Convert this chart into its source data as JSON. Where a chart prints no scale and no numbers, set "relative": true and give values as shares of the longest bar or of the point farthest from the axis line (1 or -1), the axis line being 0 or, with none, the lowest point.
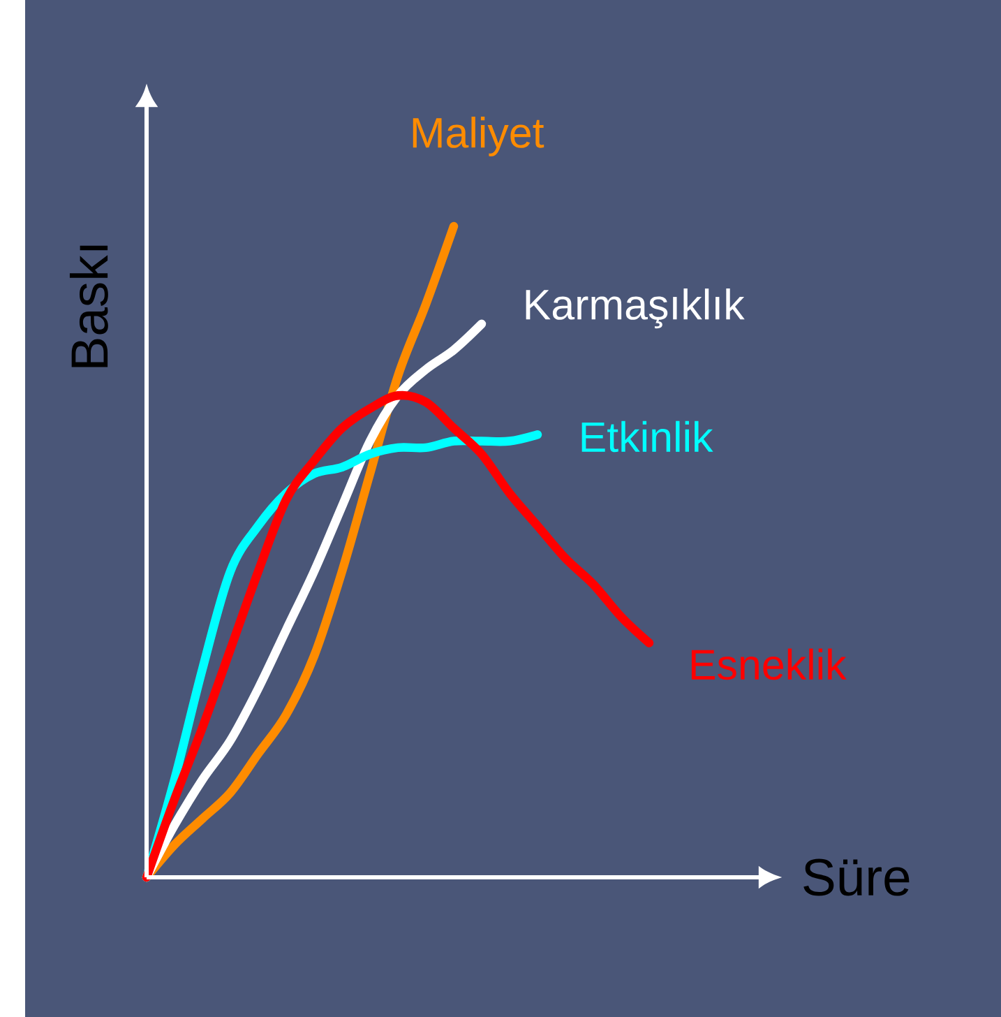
{
  "chart_data": {
    "type": "line",
    "relative": true,
    "xlabel": "Süre",
    "ylabel": "Baskı",
    "categories": [
      null,
      null,
      null,
      null,
      null,
      null,
      null,
      null,
      null,
      null,
      null,
      null,
      null,
      null,
      null,
      null,
      null,
      null,
      null
    ],
    "series": [
      {
        "name": "Maliyet",
        "color": "#ff8c00",
        "values": [
          0,
          0.05,
          0.09,
          0.13,
          0.19,
          0.25,
          0.34,
          0.47,
          0.62,
          0.77,
          0.88,
          1.0,
          null,
          null,
          null,
          null,
          null,
          null,
          null
        ]
      },
      {
        "name": "Karmaşıklık",
        "color": "#ffffff",
        "values": [
          0,
          0.08,
          0.15,
          0.21,
          0.29,
          0.38,
          0.47,
          0.57,
          0.67,
          0.74,
          0.78,
          0.81,
          0.85,
          null,
          null,
          null,
          null,
          null,
          null
        ]
      },
      {
        "name": "Etkinlik",
        "color": "#00ffff",
        "values": [
          0,
          0.15,
          0.32,
          0.47,
          0.54,
          0.59,
          0.62,
          0.63,
          0.65,
          0.66,
          0.66,
          0.67,
          0.67,
          0.67,
          0.68,
          null,
          null,
          null,
          null
        ]
      },
      {
        "name": "Esneklik",
        "color": "#ff0000",
        "values": [
          0,
          0.12,
          0.23,
          0.35,
          0.47,
          0.58,
          0.64,
          0.69,
          0.72,
          0.74,
          0.73,
          0.69,
          0.65,
          0.59,
          0.54,
          0.49,
          0.45,
          0.4,
          0.36
        ]
      }
    ]
  }
}
